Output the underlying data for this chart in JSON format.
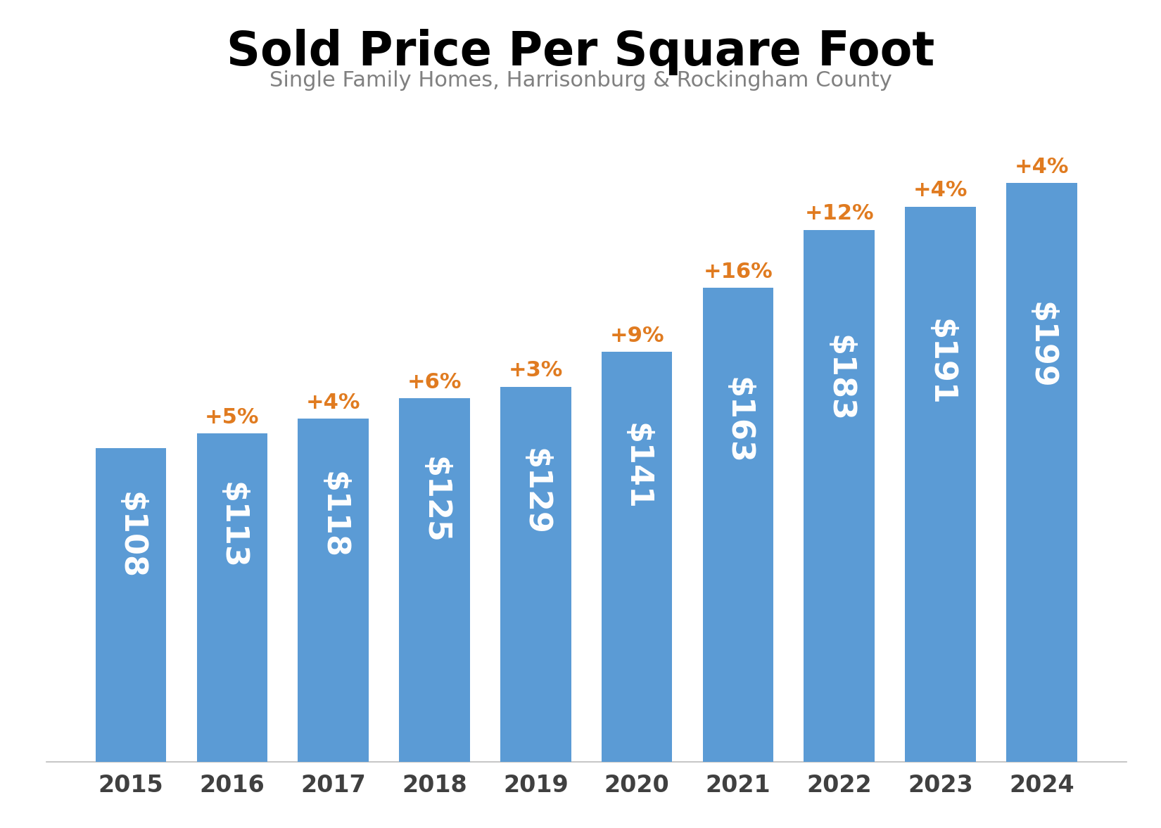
{
  "title": "Sold Price Per Square Foot",
  "subtitle": "Single Family Homes, Harrisonburg & Rockingham County",
  "years": [
    "2015",
    "2016",
    "2017",
    "2018",
    "2019",
    "2020",
    "2021",
    "2022",
    "2023",
    "2024"
  ],
  "values": [
    108,
    113,
    118,
    125,
    129,
    141,
    163,
    183,
    191,
    199
  ],
  "pct_changes": [
    null,
    "+5%",
    "+4%",
    "+6%",
    "+3%",
    "+9%",
    "+16%",
    "+12%",
    "+4%",
    "+4%"
  ],
  "bar_color": "#5B9BD5",
  "bar_label_color": "#FFFFFF",
  "pct_color": "#E07B20",
  "title_color": "#000000",
  "subtitle_color": "#808080",
  "xlabel_color": "#404040",
  "title_fontsize": 48,
  "subtitle_fontsize": 22,
  "bar_label_fontsize": 32,
  "pct_fontsize": 22,
  "xlabel_fontsize": 24,
  "ylim": [
    0,
    225
  ],
  "background_color": "#FFFFFF"
}
